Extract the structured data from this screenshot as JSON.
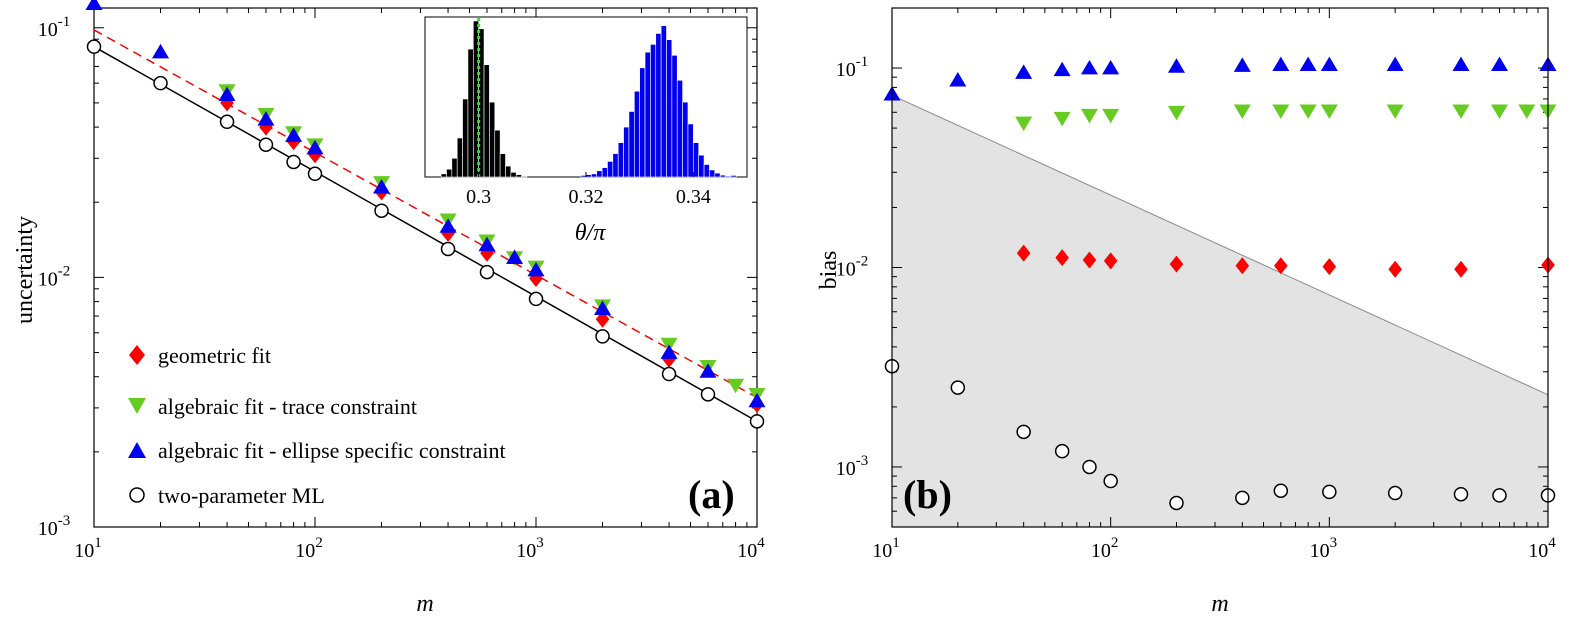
{
  "chart_data": [
    {
      "id": "a",
      "type": "line",
      "panel_label": "(a)",
      "xlabel": "m",
      "ylabel": "uncertainty",
      "xscale": "log",
      "yscale": "log",
      "xlim": [
        10,
        10000
      ],
      "ylim": [
        0.001,
        0.12
      ],
      "x_ticks": [
        {
          "value": 10,
          "base": "10",
          "exp": "1"
        },
        {
          "value": 100,
          "base": "10",
          "exp": "2"
        },
        {
          "value": 1000,
          "base": "10",
          "exp": "3"
        },
        {
          "value": 10000,
          "base": "10",
          "exp": "4"
        }
      ],
      "y_ticks": [
        {
          "value": 0.001,
          "base": "10",
          "exp": "-3"
        },
        {
          "value": 0.01,
          "base": "10",
          "exp": "-2"
        },
        {
          "value": 0.1,
          "base": "10",
          "exp": "-1"
        }
      ],
      "fit_lines": [
        {
          "name": "geometric fit guide",
          "color": "#ff0000",
          "style": "dashed",
          "x": [
            10,
            10000
          ],
          "y": [
            0.098,
            0.0033
          ]
        },
        {
          "name": "two-parameter ML guide",
          "color": "#000000",
          "style": "solid",
          "x": [
            10,
            10000
          ],
          "y": [
            0.084,
            0.00265
          ]
        }
      ],
      "series": [
        {
          "name": "geometric fit",
          "marker": "diamond",
          "color": "#ff0000",
          "x": [
            40,
            60,
            80,
            100,
            200,
            400,
            600,
            1000,
            2000,
            4000,
            10000
          ],
          "y": [
            0.05,
            0.04,
            0.035,
            0.031,
            0.022,
            0.015,
            0.0125,
            0.0099,
            0.0068,
            0.0047,
            0.0031
          ]
        },
        {
          "name": "algebraic fit - trace constraint",
          "marker": "triangle-down",
          "color": "#66cc22",
          "x": [
            40,
            60,
            80,
            100,
            200,
            400,
            600,
            800,
            1000,
            2000,
            4000,
            6000,
            8000,
            10000
          ],
          "y": [
            0.056,
            0.045,
            0.038,
            0.034,
            0.024,
            0.017,
            0.014,
            0.012,
            0.011,
            0.0077,
            0.0054,
            0.0044,
            0.0037,
            0.0034
          ]
        },
        {
          "name": "algebraic fit - ellipse specific constraint",
          "marker": "triangle-up",
          "color": "#0000ee",
          "x": [
            10,
            20,
            40,
            60,
            80,
            100,
            200,
            400,
            600,
            800,
            1000,
            2000,
            4000,
            6000,
            10000
          ],
          "y": [
            0.125,
            0.08,
            0.054,
            0.043,
            0.037,
            0.033,
            0.023,
            0.016,
            0.0135,
            0.012,
            0.0107,
            0.0075,
            0.005,
            0.0042,
            0.0032
          ]
        },
        {
          "name": "two-parameter ML",
          "marker": "circle-open",
          "color": "#000000",
          "x": [
            10,
            20,
            40,
            60,
            80,
            100,
            200,
            400,
            600,
            1000,
            2000,
            4000,
            6000,
            10000
          ],
          "y": [
            0.084,
            0.06,
            0.042,
            0.034,
            0.029,
            0.026,
            0.0185,
            0.013,
            0.0105,
            0.0082,
            0.0058,
            0.0041,
            0.0034,
            0.00265
          ]
        }
      ],
      "legend_placement": "bottom-left",
      "inset": {
        "type": "histogram",
        "xlabel": "θ/π",
        "xlim": [
          0.29,
          0.35
        ],
        "x_ticks": [
          "0.3",
          "0.32",
          "0.34"
        ],
        "x_tick_values": [
          0.3,
          0.32,
          0.34
        ],
        "reference_line": {
          "value": 0.3,
          "color": "#33dd33",
          "style": "dotted"
        },
        "bin_width": 0.001,
        "histograms": [
          {
            "name": "two-parameter ML",
            "color": "#000000",
            "bin_starts": [
              0.293,
              0.294,
              0.295,
              0.296,
              0.297,
              0.298,
              0.299,
              0.3,
              0.301,
              0.302,
              0.303,
              0.304,
              0.305,
              0.306,
              0.307,
              0.308
            ],
            "counts": [
              0.02,
              0.05,
              0.12,
              0.25,
              0.5,
              0.82,
              1.0,
              0.95,
              0.72,
              0.48,
              0.3,
              0.15,
              0.07,
              0.03,
              0.015,
              0.005
            ]
          },
          {
            "name": "algebraic fit - ellipse specific constraint",
            "color": "#0000ee",
            "bin_starts": [
              0.319,
              0.32,
              0.321,
              0.322,
              0.323,
              0.324,
              0.325,
              0.326,
              0.327,
              0.328,
              0.329,
              0.33,
              0.331,
              0.332,
              0.333,
              0.334,
              0.335,
              0.336,
              0.337,
              0.338,
              0.339,
              0.34,
              0.341,
              0.342,
              0.343,
              0.344,
              0.345,
              0.346,
              0.347
            ],
            "counts": [
              0.01,
              0.015,
              0.02,
              0.04,
              0.06,
              0.1,
              0.15,
              0.22,
              0.32,
              0.42,
              0.55,
              0.7,
              0.8,
              0.85,
              0.92,
              0.97,
              0.88,
              0.78,
              0.62,
              0.48,
              0.34,
              0.22,
              0.14,
              0.08,
              0.045,
              0.025,
              0.012,
              0.006,
              0.01
            ]
          }
        ]
      }
    },
    {
      "id": "b",
      "type": "scatter",
      "panel_label": "(b)",
      "xlabel": "m",
      "ylabel": "bias",
      "xscale": "log",
      "yscale": "log",
      "xlim": [
        10,
        10000
      ],
      "ylim": [
        0.0005,
        0.2
      ],
      "x_ticks": [
        {
          "value": 10,
          "base": "10",
          "exp": "1"
        },
        {
          "value": 100,
          "base": "10",
          "exp": "2"
        },
        {
          "value": 1000,
          "base": "10",
          "exp": "3"
        },
        {
          "value": 10000,
          "base": "10",
          "exp": "4"
        }
      ],
      "y_ticks": [
        {
          "value": 0.001,
          "base": "10",
          "exp": "-3"
        },
        {
          "value": 0.01,
          "base": "10",
          "exp": "-2"
        },
        {
          "value": 0.1,
          "base": "10",
          "exp": "-1"
        }
      ],
      "shaded_region": {
        "color": "#e3e3e3",
        "upper_x": [
          10,
          10000
        ],
        "upper_y": [
          0.073,
          0.0023
        ]
      },
      "series": [
        {
          "name": "algebraic fit - ellipse specific constraint",
          "marker": "triangle-up",
          "color": "#0000ee",
          "x": [
            10,
            20,
            40,
            60,
            80,
            100,
            200,
            400,
            600,
            800,
            1000,
            2000,
            4000,
            6000,
            10000
          ],
          "y": [
            0.074,
            0.087,
            0.095,
            0.098,
            0.1,
            0.1,
            0.102,
            0.103,
            0.104,
            0.104,
            0.104,
            0.104,
            0.104,
            0.104,
            0.104
          ]
        },
        {
          "name": "algebraic fit - trace constraint",
          "marker": "triangle-down",
          "color": "#66cc22",
          "x": [
            40,
            60,
            80,
            100,
            200,
            400,
            600,
            800,
            1000,
            2000,
            4000,
            6000,
            8000,
            10000
          ],
          "y": [
            0.053,
            0.056,
            0.058,
            0.058,
            0.06,
            0.061,
            0.061,
            0.061,
            0.061,
            0.061,
            0.061,
            0.061,
            0.061,
            0.061
          ]
        },
        {
          "name": "geometric fit",
          "marker": "diamond",
          "color": "#ff0000",
          "x": [
            40,
            60,
            80,
            100,
            200,
            400,
            600,
            1000,
            2000,
            4000,
            10000
          ],
          "y": [
            0.0118,
            0.0112,
            0.0109,
            0.0108,
            0.0104,
            0.0102,
            0.0102,
            0.0101,
            0.0098,
            0.0098,
            0.0103
          ]
        },
        {
          "name": "two-parameter ML",
          "marker": "circle-open",
          "color": "#000000",
          "x": [
            10,
            20,
            40,
            60,
            80,
            100,
            200,
            400,
            600,
            1000,
            2000,
            4000,
            6000,
            10000
          ],
          "y": [
            0.0032,
            0.0025,
            0.0015,
            0.0012,
            0.001,
            0.00085,
            0.00066,
            0.0007,
            0.00076,
            0.00075,
            0.00074,
            0.00073,
            0.00072,
            0.00072
          ]
        }
      ]
    }
  ]
}
